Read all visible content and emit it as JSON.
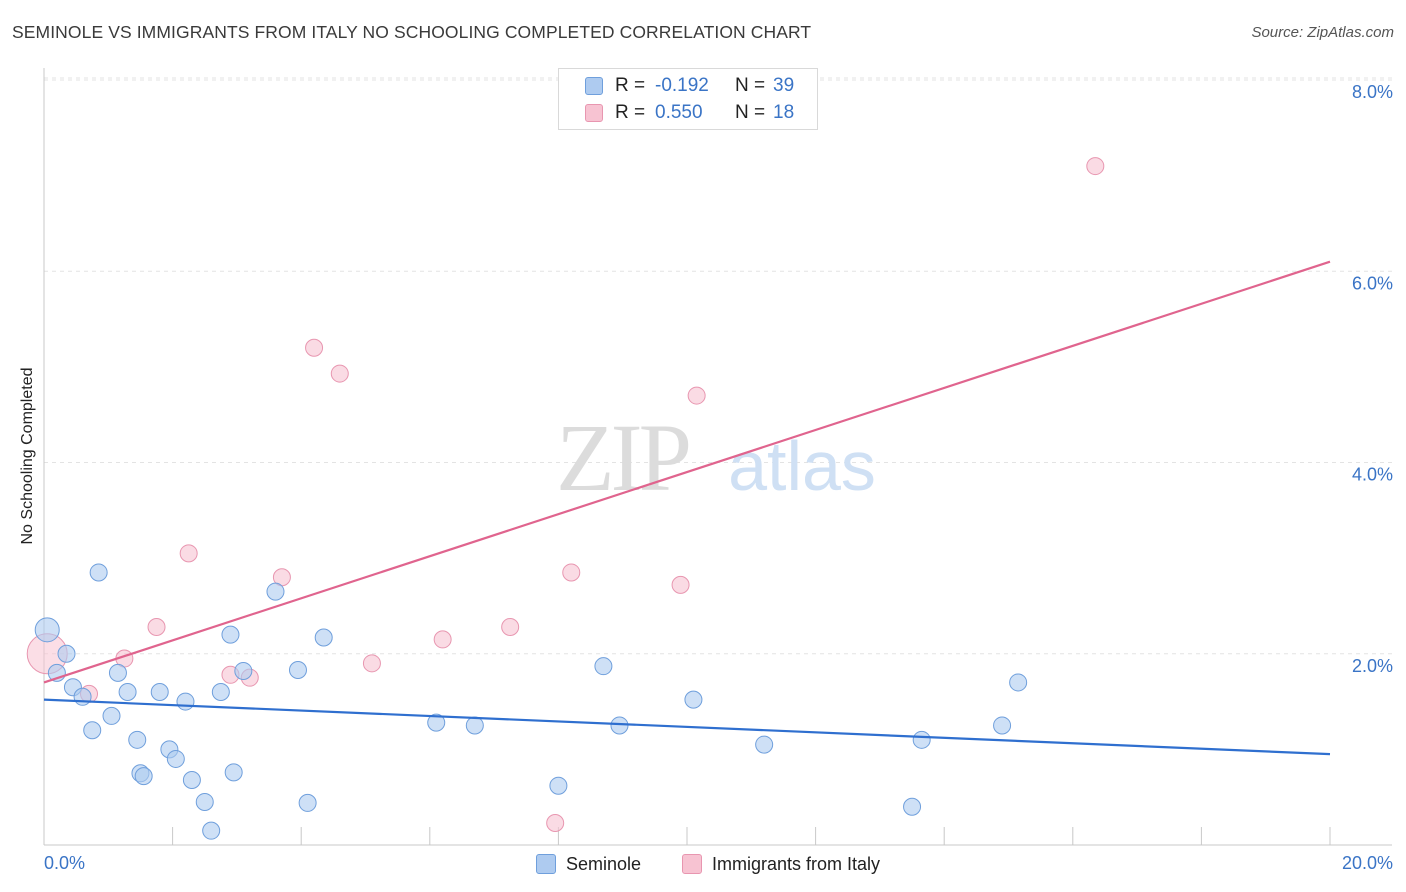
{
  "header": {
    "title": "SEMINOLE VS IMMIGRANTS FROM ITALY NO SCHOOLING COMPLETED CORRELATION CHART",
    "source": "Source: ZipAtlas.com"
  },
  "watermark": {
    "zip": "ZIP",
    "atlas": "atlas"
  },
  "legend": {
    "rows": [
      {
        "r_label": "R =",
        "r_value": "-0.192",
        "n_label": "N =",
        "n_value": "39"
      },
      {
        "r_label": "R =",
        "r_value": "0.550",
        "n_label": "N =",
        "n_value": "18"
      }
    ]
  },
  "bottom_legend": [
    "Seminole",
    "Immigrants from Italy"
  ],
  "colors": {
    "seminole_fill": "#aecbf0",
    "seminole_stroke": "#6f9fdc",
    "seminole_line": "#2f6fcf",
    "italy_fill": "#f7c3d2",
    "italy_stroke": "#e896b0",
    "italy_line": "#e0648e",
    "tick_text": "#3a74c6",
    "grid": "#e3e3e3"
  },
  "chart_data": {
    "type": "scatter",
    "title": "SEMINOLE VS IMMIGRANTS FROM ITALY NO SCHOOLING COMPLETED CORRELATION CHART",
    "xlabel": "",
    "ylabel": "No Schooling Completed",
    "xlim": [
      0,
      20
    ],
    "ylim": [
      0,
      8.0
    ],
    "x_tick_labels": [
      "0.0%",
      "20.0%"
    ],
    "y_ticks": [
      2.0,
      4.0,
      6.0,
      8.0
    ],
    "y_tick_labels": [
      "2.0%",
      "4.0%",
      "6.0%",
      "8.0%"
    ],
    "grid": true,
    "legend_position": "top-center",
    "series": [
      {
        "name": "Seminole",
        "r": -0.192,
        "n": 39,
        "trend": {
          "x": [
            0,
            20
          ],
          "y": [
            1.52,
            0.95
          ]
        },
        "points": [
          {
            "x": 0.05,
            "y": 2.25,
            "big": true
          },
          {
            "x": 0.2,
            "y": 1.8
          },
          {
            "x": 0.35,
            "y": 2.0
          },
          {
            "x": 0.45,
            "y": 1.65
          },
          {
            "x": 0.6,
            "y": 1.55
          },
          {
            "x": 0.75,
            "y": 1.2
          },
          {
            "x": 0.85,
            "y": 2.85
          },
          {
            "x": 1.05,
            "y": 1.35
          },
          {
            "x": 1.15,
            "y": 1.8
          },
          {
            "x": 1.3,
            "y": 1.6
          },
          {
            "x": 1.45,
            "y": 1.1
          },
          {
            "x": 1.5,
            "y": 0.75
          },
          {
            "x": 1.55,
            "y": 0.72
          },
          {
            "x": 1.8,
            "y": 1.6
          },
          {
            "x": 1.95,
            "y": 1.0
          },
          {
            "x": 2.05,
            "y": 0.9
          },
          {
            "x": 2.2,
            "y": 1.5
          },
          {
            "x": 2.3,
            "y": 0.68
          },
          {
            "x": 2.5,
            "y": 0.45
          },
          {
            "x": 2.6,
            "y": 0.15
          },
          {
            "x": 2.75,
            "y": 1.6
          },
          {
            "x": 2.9,
            "y": 2.2
          },
          {
            "x": 2.95,
            "y": 0.76
          },
          {
            "x": 3.1,
            "y": 1.82
          },
          {
            "x": 3.6,
            "y": 2.65
          },
          {
            "x": 3.95,
            "y": 1.83
          },
          {
            "x": 4.1,
            "y": 0.44
          },
          {
            "x": 4.35,
            "y": 2.17
          },
          {
            "x": 6.1,
            "y": 1.28
          },
          {
            "x": 6.7,
            "y": 1.25
          },
          {
            "x": 8.0,
            "y": 0.62
          },
          {
            "x": 8.7,
            "y": 1.87
          },
          {
            "x": 8.95,
            "y": 1.25
          },
          {
            "x": 10.1,
            "y": 1.52
          },
          {
            "x": 11.2,
            "y": 1.05
          },
          {
            "x": 13.5,
            "y": 0.4
          },
          {
            "x": 13.65,
            "y": 1.1
          },
          {
            "x": 14.9,
            "y": 1.25
          },
          {
            "x": 15.15,
            "y": 1.7
          }
        ]
      },
      {
        "name": "Immigrants from Italy",
        "r": 0.55,
        "n": 18,
        "trend": {
          "x": [
            0,
            20
          ],
          "y": [
            1.7,
            6.1
          ]
        },
        "points": [
          {
            "x": 0.05,
            "y": 2.0,
            "big": true
          },
          {
            "x": 0.7,
            "y": 1.58
          },
          {
            "x": 1.25,
            "y": 1.95
          },
          {
            "x": 1.75,
            "y": 2.28
          },
          {
            "x": 2.25,
            "y": 3.05
          },
          {
            "x": 2.9,
            "y": 1.78
          },
          {
            "x": 3.2,
            "y": 1.75
          },
          {
            "x": 3.7,
            "y": 2.8
          },
          {
            "x": 4.2,
            "y": 5.2
          },
          {
            "x": 4.6,
            "y": 4.93
          },
          {
            "x": 5.1,
            "y": 1.9
          },
          {
            "x": 6.2,
            "y": 2.15
          },
          {
            "x": 7.25,
            "y": 2.28
          },
          {
            "x": 7.95,
            "y": 0.23
          },
          {
            "x": 8.2,
            "y": 2.85
          },
          {
            "x": 9.9,
            "y": 2.72
          },
          {
            "x": 10.15,
            "y": 4.7
          },
          {
            "x": 16.35,
            "y": 7.1
          }
        ]
      }
    ]
  }
}
